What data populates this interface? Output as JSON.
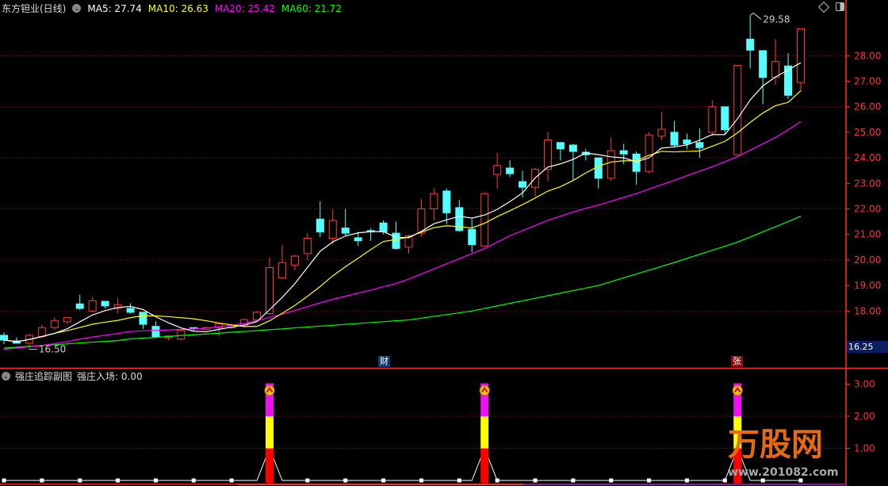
{
  "header": {
    "stock_name": "东方钽业(日线)",
    "ma5": "MA5: 27.74",
    "ma10": "MA10: 26.63",
    "ma20": "MA20: 25.42",
    "ma60": "MA60: 21.72"
  },
  "sub_panel": {
    "title": "强庄追踪副图",
    "indicator": "强庄入场: 0.00"
  },
  "markers": {
    "cai": "财",
    "zhang": "张"
  },
  "annotations": {
    "high": "29.58",
    "low": "16.50",
    "current": "16.25"
  },
  "logo": {
    "name": "万股网",
    "url": "www.201082.com"
  },
  "colors": {
    "up": "#ff3b3b",
    "down": "#54ffff",
    "ma5": "#ffffff",
    "ma10": "#ffff00",
    "ma20": "#ff00ff",
    "ma60": "#00ff00",
    "axis": "#ff3030"
  },
  "chart_data": {
    "type": "candlestick",
    "price_axis": {
      "ticks": [
        "28.00",
        "27.00",
        "26.00",
        "25.00",
        "24.00",
        "23.00",
        "22.00",
        "21.00",
        "20.00",
        "19.00",
        "18.00"
      ],
      "range": [
        15.9,
        29.9
      ]
    },
    "sub_axis": {
      "ticks": [
        "3.00",
        "2.00",
        "1.00"
      ],
      "range": [
        0,
        3.2
      ]
    },
    "ohlc": [
      [
        17.05,
        16.86,
        17.17,
        16.7
      ],
      [
        16.83,
        16.74,
        16.97,
        16.72
      ],
      [
        16.74,
        17.05,
        17.1,
        16.5
      ],
      [
        17.0,
        17.35,
        17.47,
        16.95
      ],
      [
        17.35,
        17.63,
        17.75,
        17.25
      ],
      [
        17.58,
        17.75,
        17.75,
        17.5
      ],
      [
        18.28,
        18.1,
        18.63,
        18.05
      ],
      [
        18.0,
        18.4,
        18.55,
        17.95
      ],
      [
        18.38,
        18.2,
        18.38,
        18.1
      ],
      [
        18.1,
        18.25,
        18.5,
        17.9
      ],
      [
        18.1,
        17.95,
        18.3,
        17.9
      ],
      [
        17.95,
        17.48,
        17.95,
        17.3
      ],
      [
        17.4,
        17.0,
        17.6,
        16.95
      ],
      [
        16.95,
        17.02,
        17.05,
        16.85
      ],
      [
        16.9,
        17.25,
        17.25,
        16.85
      ],
      [
        17.35,
        17.3,
        17.35,
        17.2
      ],
      [
        17.27,
        17.35,
        17.38,
        17.22
      ],
      [
        17.35,
        17.5,
        17.55,
        17.0
      ],
      [
        17.35,
        17.45,
        17.5,
        17.3
      ],
      [
        17.45,
        17.66,
        17.7,
        17.35
      ],
      [
        17.65,
        17.95,
        18.0,
        17.6
      ],
      [
        17.9,
        19.7,
        20.1,
        17.85
      ],
      [
        19.3,
        19.9,
        20.6,
        19.3
      ],
      [
        19.8,
        20.15,
        20.2,
        19.6
      ],
      [
        20.25,
        20.85,
        21.05,
        20.0
      ],
      [
        21.6,
        21.1,
        22.3,
        20.9
      ],
      [
        20.85,
        21.55,
        22.0,
        20.6
      ],
      [
        21.25,
        21.05,
        22.0,
        20.95
      ],
      [
        20.87,
        20.75,
        21.1,
        20.55
      ],
      [
        21.15,
        21.1,
        21.25,
        20.75
      ],
      [
        21.45,
        21.1,
        21.55,
        21.0
      ],
      [
        21.05,
        20.45,
        21.5,
        20.4
      ],
      [
        20.5,
        20.95,
        21.0,
        20.25
      ],
      [
        21.05,
        22.0,
        22.4,
        20.9
      ],
      [
        22.0,
        22.6,
        22.8,
        21.55
      ],
      [
        22.7,
        21.85,
        22.8,
        21.4
      ],
      [
        22.05,
        21.15,
        22.35,
        21.1
      ],
      [
        21.2,
        20.6,
        21.6,
        20.3
      ],
      [
        20.55,
        22.6,
        22.65,
        20.5
      ],
      [
        23.35,
        23.7,
        24.2,
        22.8
      ],
      [
        23.6,
        23.38,
        23.9,
        23.25
      ],
      [
        23.07,
        22.85,
        23.5,
        22.45
      ],
      [
        22.85,
        23.55,
        23.6,
        22.5
      ],
      [
        23.55,
        24.7,
        25.0,
        23.1
      ],
      [
        24.6,
        24.35,
        24.6,
        23.9
      ],
      [
        24.5,
        24.25,
        24.55,
        23.15
      ],
      [
        24.22,
        24.12,
        24.35,
        23.9
      ],
      [
        24.0,
        23.2,
        24.0,
        22.8
      ],
      [
        23.2,
        24.28,
        24.8,
        23.1
      ],
      [
        24.28,
        24.15,
        24.55,
        23.75
      ],
      [
        24.15,
        23.47,
        24.25,
        22.95
      ],
      [
        23.47,
        24.9,
        25.0,
        23.4
      ],
      [
        24.85,
        25.12,
        25.8,
        24.7
      ],
      [
        25.0,
        24.5,
        25.45,
        24.4
      ],
      [
        24.7,
        24.55,
        24.95,
        24.35
      ],
      [
        24.6,
        24.4,
        25.15,
        24.0
      ],
      [
        25.0,
        26.0,
        26.25,
        24.85
      ],
      [
        26.0,
        25.1,
        26.0,
        24.9
      ],
      [
        24.12,
        27.62,
        27.62,
        24.1
      ],
      [
        28.65,
        28.22,
        29.58,
        27.5
      ],
      [
        28.2,
        27.15,
        28.2,
        26.1
      ],
      [
        27.15,
        27.77,
        28.65,
        26.85
      ],
      [
        27.6,
        26.45,
        28.1,
        26.3
      ],
      [
        26.95,
        29.05,
        29.05,
        26.6
      ]
    ],
    "ma20": [
      16.5,
      16.55,
      16.6,
      16.65,
      16.72,
      16.8,
      16.9,
      16.98,
      17.05,
      17.12,
      17.2,
      17.22,
      17.24,
      17.26,
      17.28,
      17.3,
      17.33,
      17.38,
      17.44,
      17.52,
      17.62,
      17.75,
      17.88,
      18.02,
      18.17,
      18.32,
      18.46,
      18.58,
      18.7,
      18.82,
      18.95,
      19.08,
      19.25,
      19.45,
      19.65,
      19.85,
      20.05,
      20.25,
      20.45,
      20.7,
      20.95,
      21.15,
      21.35,
      21.55,
      21.72,
      21.88,
      22.02,
      22.15,
      22.3,
      22.45,
      22.6,
      22.78,
      22.95,
      23.12,
      23.3,
      23.48,
      23.65,
      23.85,
      24.05,
      24.3,
      24.55,
      24.8,
      25.1,
      25.42
    ],
    "ma60": [
      16.55,
      16.58,
      16.62,
      16.65,
      16.68,
      16.71,
      16.75,
      16.78,
      16.81,
      16.84,
      16.91,
      16.94,
      16.97,
      17.0,
      17.04,
      17.07,
      17.1,
      17.13,
      17.17,
      17.2,
      17.23,
      17.27,
      17.3,
      17.34,
      17.37,
      17.41,
      17.44,
      17.48,
      17.51,
      17.55,
      17.58,
      17.62,
      17.65,
      17.72,
      17.79,
      17.86,
      17.93,
      18.0,
      18.1,
      18.2,
      18.3,
      18.4,
      18.5,
      18.6,
      18.7,
      18.8,
      18.9,
      19.0,
      19.15,
      19.3,
      19.45,
      19.6,
      19.75,
      19.9,
      20.06,
      20.22,
      20.38,
      20.54,
      20.7,
      20.9,
      21.1,
      21.3,
      21.5,
      21.72
    ],
    "signal_bars": [
      21,
      38,
      58
    ],
    "signal_value": 3.0,
    "marker_bars": {
      "cai": 30,
      "zhang": 58
    }
  }
}
